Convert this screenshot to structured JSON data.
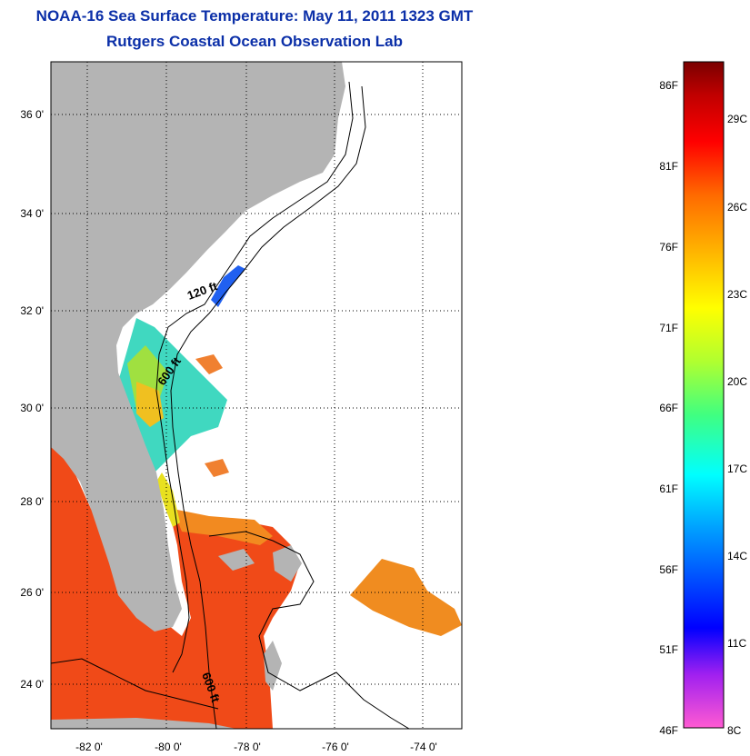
{
  "title": "NOAA-16 Sea Surface Temperature:  May 11, 2011 1323 GMT",
  "subtitle": "Rutgers Coastal Ocean Observation Lab",
  "map": {
    "lon_range": [
      -83.0,
      -73.0
    ],
    "lat_range": [
      23.0,
      37.0
    ],
    "lon_ticks": [
      {
        "value": -82,
        "label": "-82 0'"
      },
      {
        "value": -80,
        "label": "-80 0'"
      },
      {
        "value": -78,
        "label": "-78 0'"
      },
      {
        "value": -76,
        "label": "-76 0'"
      },
      {
        "value": -74,
        "label": "-74 0'"
      }
    ],
    "lat_ticks": [
      {
        "value": 36,
        "label": "36 0'"
      },
      {
        "value": 34,
        "label": "34 0'"
      },
      {
        "value": 32,
        "label": "32 0'"
      },
      {
        "value": 30,
        "label": "30 0'"
      },
      {
        "value": 28,
        "label": "28 0'"
      },
      {
        "value": 26,
        "label": "26 0'"
      },
      {
        "value": 24,
        "label": "24 0'"
      }
    ],
    "grid": "dotted",
    "contour_labels": [
      "120 ft",
      "600 ft",
      "600 ft"
    ],
    "land_color": "#b4b4b4"
  },
  "colorbar": {
    "range_f": [
      46,
      88
    ],
    "f_labels": [
      "86F",
      "81F",
      "76F",
      "71F",
      "66F",
      "61F",
      "56F",
      "51F",
      "46F"
    ],
    "c_labels": [
      "29C",
      "26C",
      "23C",
      "20C",
      "17C",
      "14C",
      "11C",
      "8C"
    ],
    "colors": [
      "#ff5ad2",
      "#a020f0",
      "#0000ff",
      "#00a0ff",
      "#00ffff",
      "#40ff80",
      "#b0ff30",
      "#ffff00",
      "#ffb000",
      "#ff6a00",
      "#ff0000",
      "#c00000",
      "#7a0000"
    ]
  }
}
